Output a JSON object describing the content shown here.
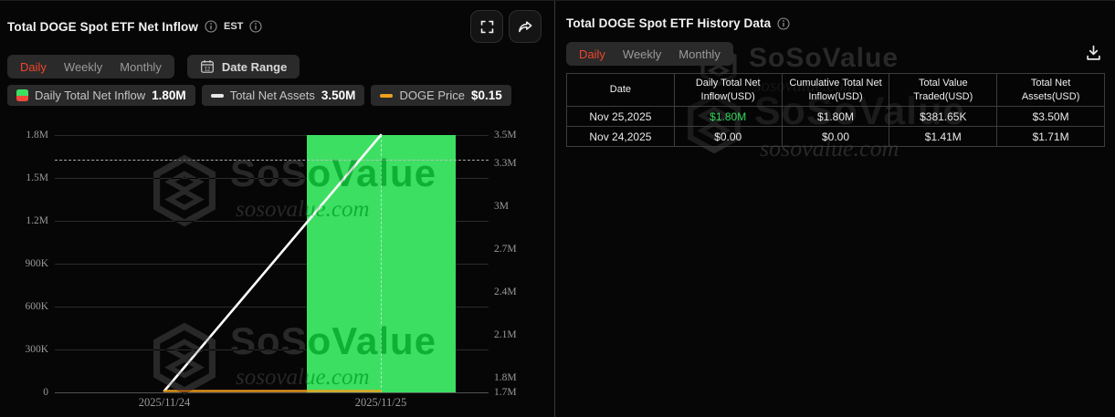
{
  "left_panel": {
    "title": "Total DOGE Spot ETF Net Inflow",
    "timezone": "EST",
    "tabs": [
      {
        "label": "Daily",
        "active": true
      },
      {
        "label": "Weekly",
        "active": false
      },
      {
        "label": "Monthly",
        "active": false
      }
    ],
    "date_range_label": "Date Range",
    "legend": [
      {
        "label": "Daily Total Net Inflow",
        "value": "1.80M",
        "swatch": "split",
        "colors": [
          "#3ddf63",
          "#f0483a"
        ]
      },
      {
        "label": "Total Net Assets",
        "value": "3.50M",
        "swatch": "dash",
        "colors": [
          "#e8e8e8"
        ]
      },
      {
        "label": "DOGE Price",
        "value": "$0.15",
        "swatch": "dash",
        "colors": [
          "#efa11d"
        ]
      }
    ]
  },
  "chart_data": {
    "type": "bar",
    "categories": [
      "2025/11/24",
      "2025/11/25"
    ],
    "series": [
      {
        "name": "Daily Total Net Inflow",
        "kind": "bar",
        "axis": "left",
        "color": "#3ddf63",
        "values": [
          0,
          1800000
        ]
      },
      {
        "name": "Total Net Assets",
        "kind": "line",
        "axis": "right",
        "color": "#ffffff",
        "values": [
          1710000,
          3500000
        ]
      },
      {
        "name": "DOGE Price",
        "kind": "line",
        "axis": "none",
        "color": "#efa11d",
        "values": [
          0.15,
          0.15
        ]
      }
    ],
    "left_axis": {
      "min": 0,
      "max": 1800000,
      "tick_labels": [
        "1.8M",
        "1.5M",
        "1.2M",
        "900K",
        "600K",
        "300K",
        "0"
      ]
    },
    "right_axis": {
      "min": 1700000,
      "max": 3500000,
      "tick_values": [
        3500000,
        3300000,
        3000000,
        2700000,
        2400000,
        2100000,
        1800000,
        1700000
      ],
      "tick_labels": [
        "3.5M",
        "3.3M",
        "3M",
        "2.7M",
        "2.4M",
        "2.1M",
        "1.8M",
        "1.7M"
      ]
    },
    "reference_line": {
      "axis": "right",
      "value": 3330000,
      "style": "dashed"
    },
    "crosshair_x": "2025/11/25",
    "grid": true,
    "legend_position": "top"
  },
  "right_panel": {
    "title": "Total DOGE Spot ETF History Data",
    "tabs": [
      {
        "label": "Daily",
        "active": true
      },
      {
        "label": "Weekly",
        "active": false
      },
      {
        "label": "Monthly",
        "active": false
      }
    ],
    "table": {
      "headers": [
        "Date",
        "Daily Total Net Inflow(USD)",
        "Cumulative Total Net Inflow(USD)",
        "Total Value Traded(USD)",
        "Total Net Assets(USD)"
      ],
      "rows": [
        {
          "date": "Nov 25,2025",
          "daily_inflow": "$1.80M",
          "daily_inflow_positive": true,
          "cumulative_inflow": "$1.80M",
          "value_traded": "$381.65K",
          "net_assets": "$3.50M"
        },
        {
          "date": "Nov 24,2025",
          "daily_inflow": "$0.00",
          "daily_inflow_positive": false,
          "cumulative_inflow": "$0.00",
          "value_traded": "$1.41M",
          "net_assets": "$1.71M"
        }
      ]
    }
  },
  "watermark": {
    "brand": "SoSoValue",
    "domain": "sosovalue.com"
  },
  "icons": [
    "info-icon",
    "fullscreen-icon",
    "share-icon",
    "calendar-icon",
    "download-icon"
  ],
  "colors": {
    "accent_red": "#f0452d",
    "inflow_green": "#3ddf63",
    "outflow_red": "#f0483a",
    "doge_orange": "#efa11d",
    "assets_line": "#ffffff"
  }
}
